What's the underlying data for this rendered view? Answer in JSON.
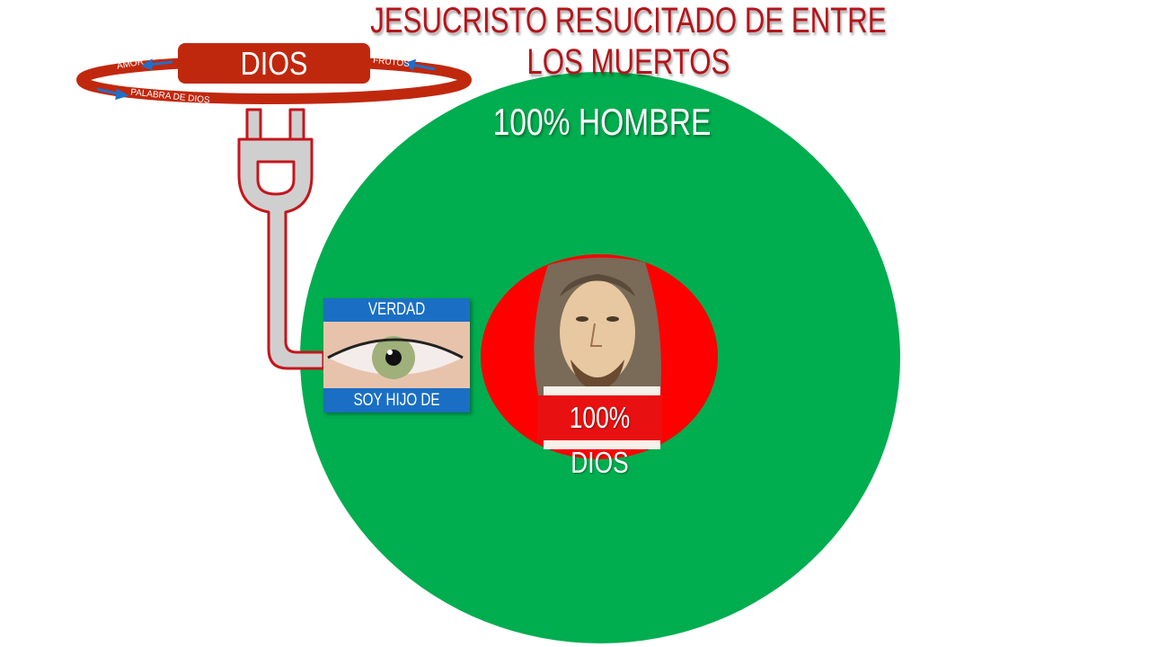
{
  "title": "JESUCRISTO RESUCITADO DE ENTRE LOS MUERTOS",
  "outer_circle": {
    "label": "100% HOMBRE",
    "color": "#00ad4f"
  },
  "inner_circle": {
    "label": "100% DIOS",
    "color": "#ff0000"
  },
  "cycle": {
    "center_label": "DIOS",
    "labels": {
      "amor": "AMOR",
      "frutos": "FRUTOS",
      "palabra": "PALABRA DE DIOS"
    },
    "color": "#c0280e",
    "arrow_color": "#1f6fc8"
  },
  "eye_card": {
    "top_label": "VERDAD",
    "bottom_label": "SOY HIJO DE DIOS",
    "bar_color": "#1a6fc4"
  },
  "icons": [
    "plug-icon",
    "eye-image",
    "jesus-portrait"
  ]
}
